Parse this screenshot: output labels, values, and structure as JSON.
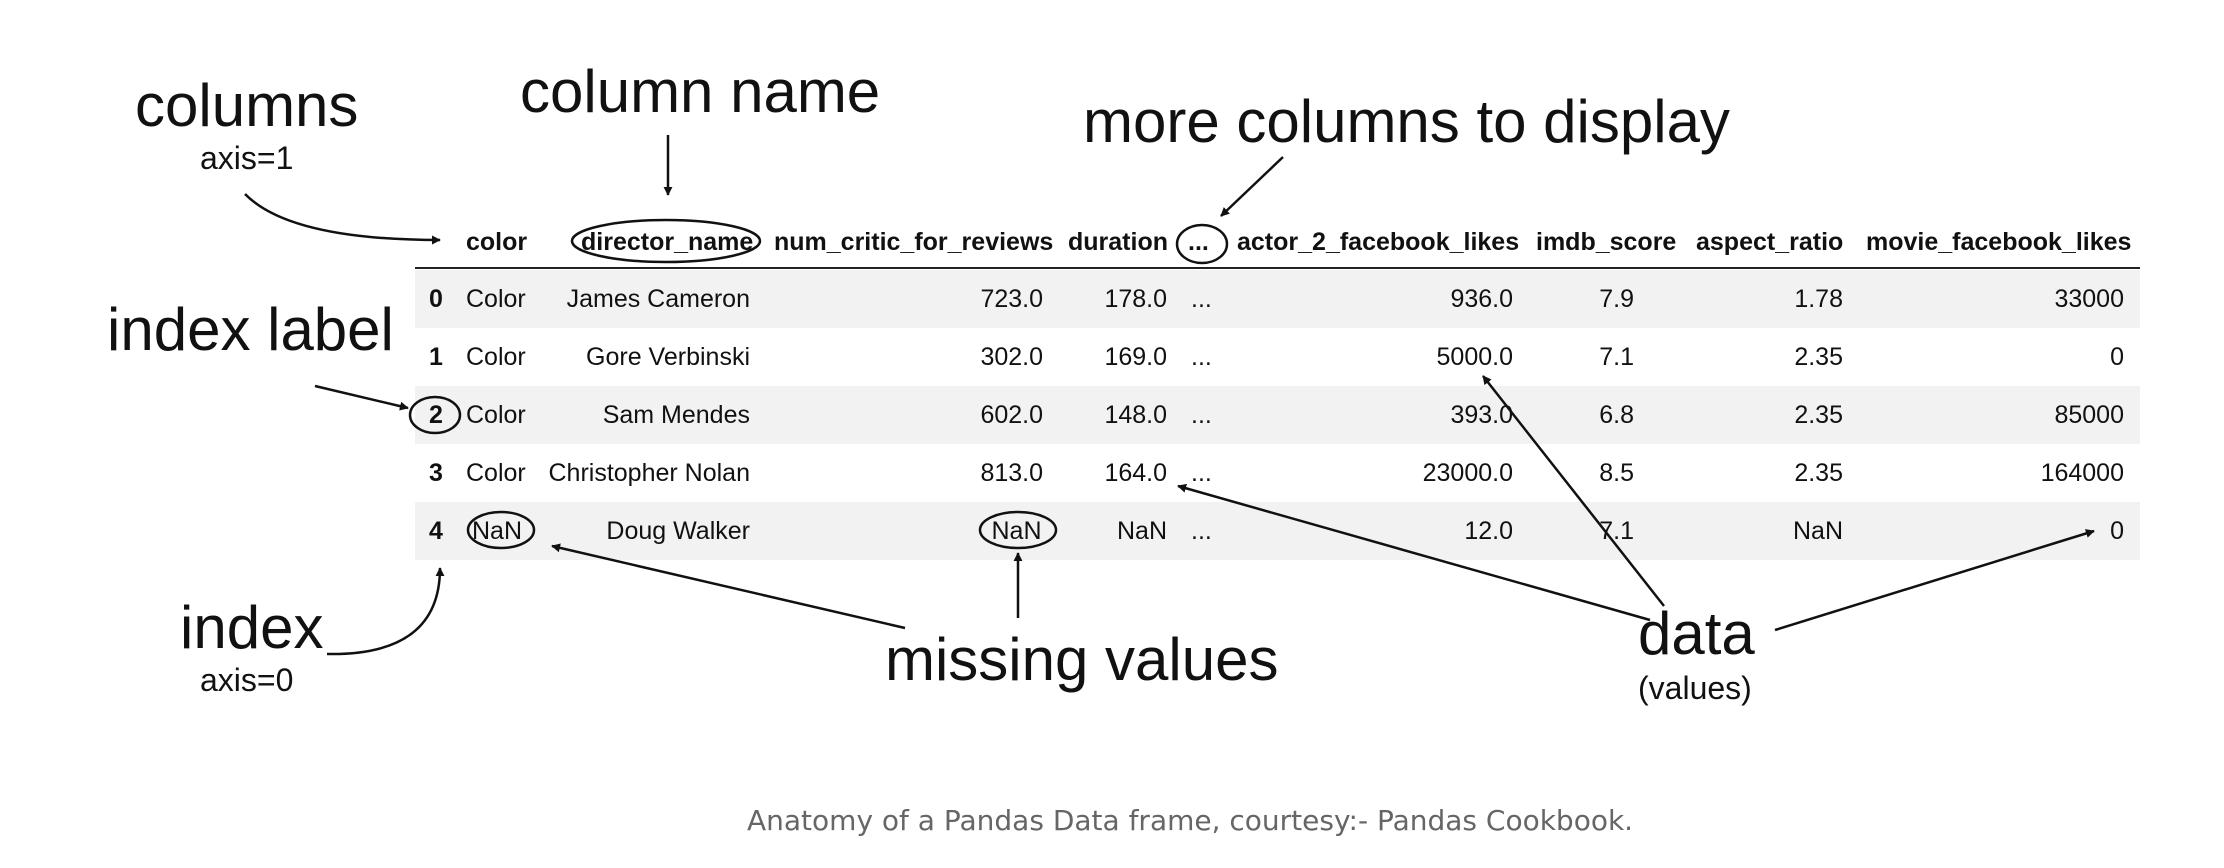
{
  "annotations": {
    "columns": "columns",
    "columns_axis": "axis=1",
    "column_name": "column name",
    "more_columns": "more columns to display",
    "index_label": "index label",
    "index": "index",
    "index_axis": "axis=0",
    "missing_values": "missing values",
    "data": "data",
    "data_values": "(values)"
  },
  "caption": "Anatomy of a Pandas Data frame, courtesy:- Pandas Cookbook.",
  "table": {
    "headers": [
      "color",
      "director_name",
      "num_critic_for_reviews",
      "duration",
      "...",
      "actor_2_facebook_likes",
      "imdb_score",
      "aspect_ratio",
      "movie_facebook_likes"
    ],
    "rows": [
      {
        "index": "0",
        "cells": [
          "Color",
          "James Cameron",
          "723.0",
          "178.0",
          "...",
          "936.0",
          "7.9",
          "1.78",
          "33000"
        ]
      },
      {
        "index": "1",
        "cells": [
          "Color",
          "Gore Verbinski",
          "302.0",
          "169.0",
          "...",
          "5000.0",
          "7.1",
          "2.35",
          "0"
        ]
      },
      {
        "index": "2",
        "cells": [
          "Color",
          "Sam Mendes",
          "602.0",
          "148.0",
          "...",
          "393.0",
          "6.8",
          "2.35",
          "85000"
        ]
      },
      {
        "index": "3",
        "cells": [
          "Color",
          "Christopher Nolan",
          "813.0",
          "164.0",
          "...",
          "23000.0",
          "8.5",
          "2.35",
          "164000"
        ]
      },
      {
        "index": "4",
        "cells": [
          "NaN",
          "Doug Walker",
          "NaN",
          "NaN",
          "...",
          "12.0",
          "7.1",
          "NaN",
          "0"
        ]
      }
    ]
  },
  "colors": {
    "text": "#111111",
    "stripe": "#f2f2f2",
    "caption": "#666666"
  }
}
